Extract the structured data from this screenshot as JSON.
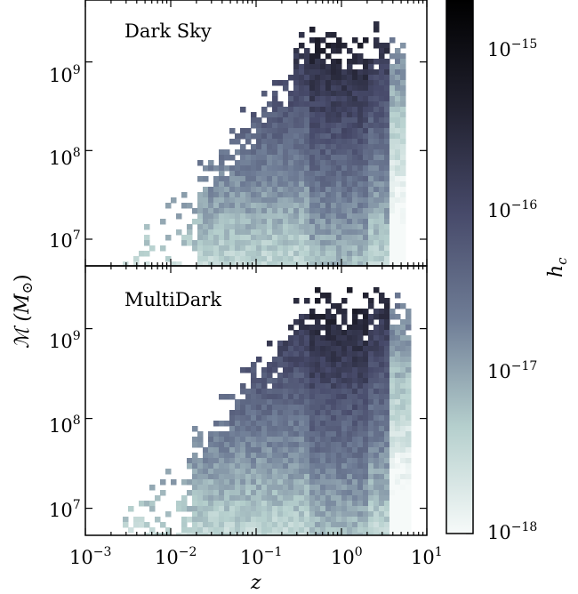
{
  "chart_data": [
    {
      "type": "heatmap",
      "panel_label": "Dark Sky",
      "xscale": "log",
      "yscale": "log",
      "xlim": [
        0.001,
        10
      ],
      "ylim": [
        5000000,
        5000000000
      ],
      "x_tick_labels": [
        "10",
        "10",
        "10",
        "10",
        "10"
      ],
      "x_tick_exponents": [
        "−3",
        "−2",
        "−1",
        "0",
        "1"
      ],
      "y_tick_labels": [
        "10",
        "10",
        "10"
      ],
      "y_tick_exponents": [
        "7",
        "8",
        "9"
      ],
      "y_tick_values": [
        10000000,
        100000000,
        1000000000
      ],
      "occupied_region": {
        "z_min": 0.005,
        "z_max": 5,
        "mass_max_at_z1": 1500000000,
        "mass_max_peak": 3000000000
      }
    },
    {
      "type": "heatmap",
      "panel_label": "MultiDark",
      "xscale": "log",
      "yscale": "log",
      "xlim": [
        0.001,
        10
      ],
      "ylim": [
        5000000,
        5000000000
      ],
      "y_tick_labels": [
        "10",
        "10",
        "10"
      ],
      "y_tick_exponents": [
        "7",
        "8",
        "9"
      ],
      "y_tick_values": [
        10000000,
        100000000,
        1000000000
      ],
      "occupied_region": {
        "z_min": 0.004,
        "z_max": 6,
        "mass_max_at_z1": 1500000000,
        "mass_max_peak": 3000000000
      }
    }
  ],
  "x_axis_label": "z",
  "y_axis_label": "ℳ (M",
  "y_axis_label_sub": "⊙",
  "y_axis_label_close": ")",
  "colorbar": {
    "label": "h",
    "label_sub": "c",
    "scale": "log",
    "range": [
      1e-18,
      3e-15
    ],
    "tick_labels": [
      "10",
      "10",
      "10",
      "10"
    ],
    "tick_exponents": [
      "−18",
      "−17",
      "−16",
      "−15"
    ],
    "tick_values": [
      1e-18,
      1e-17,
      1e-16,
      1e-15
    ],
    "colormap": [
      "#f6faf9",
      "#b5cfcd",
      "#6f7d96",
      "#474a6a",
      "#20202e",
      "#000000"
    ]
  }
}
